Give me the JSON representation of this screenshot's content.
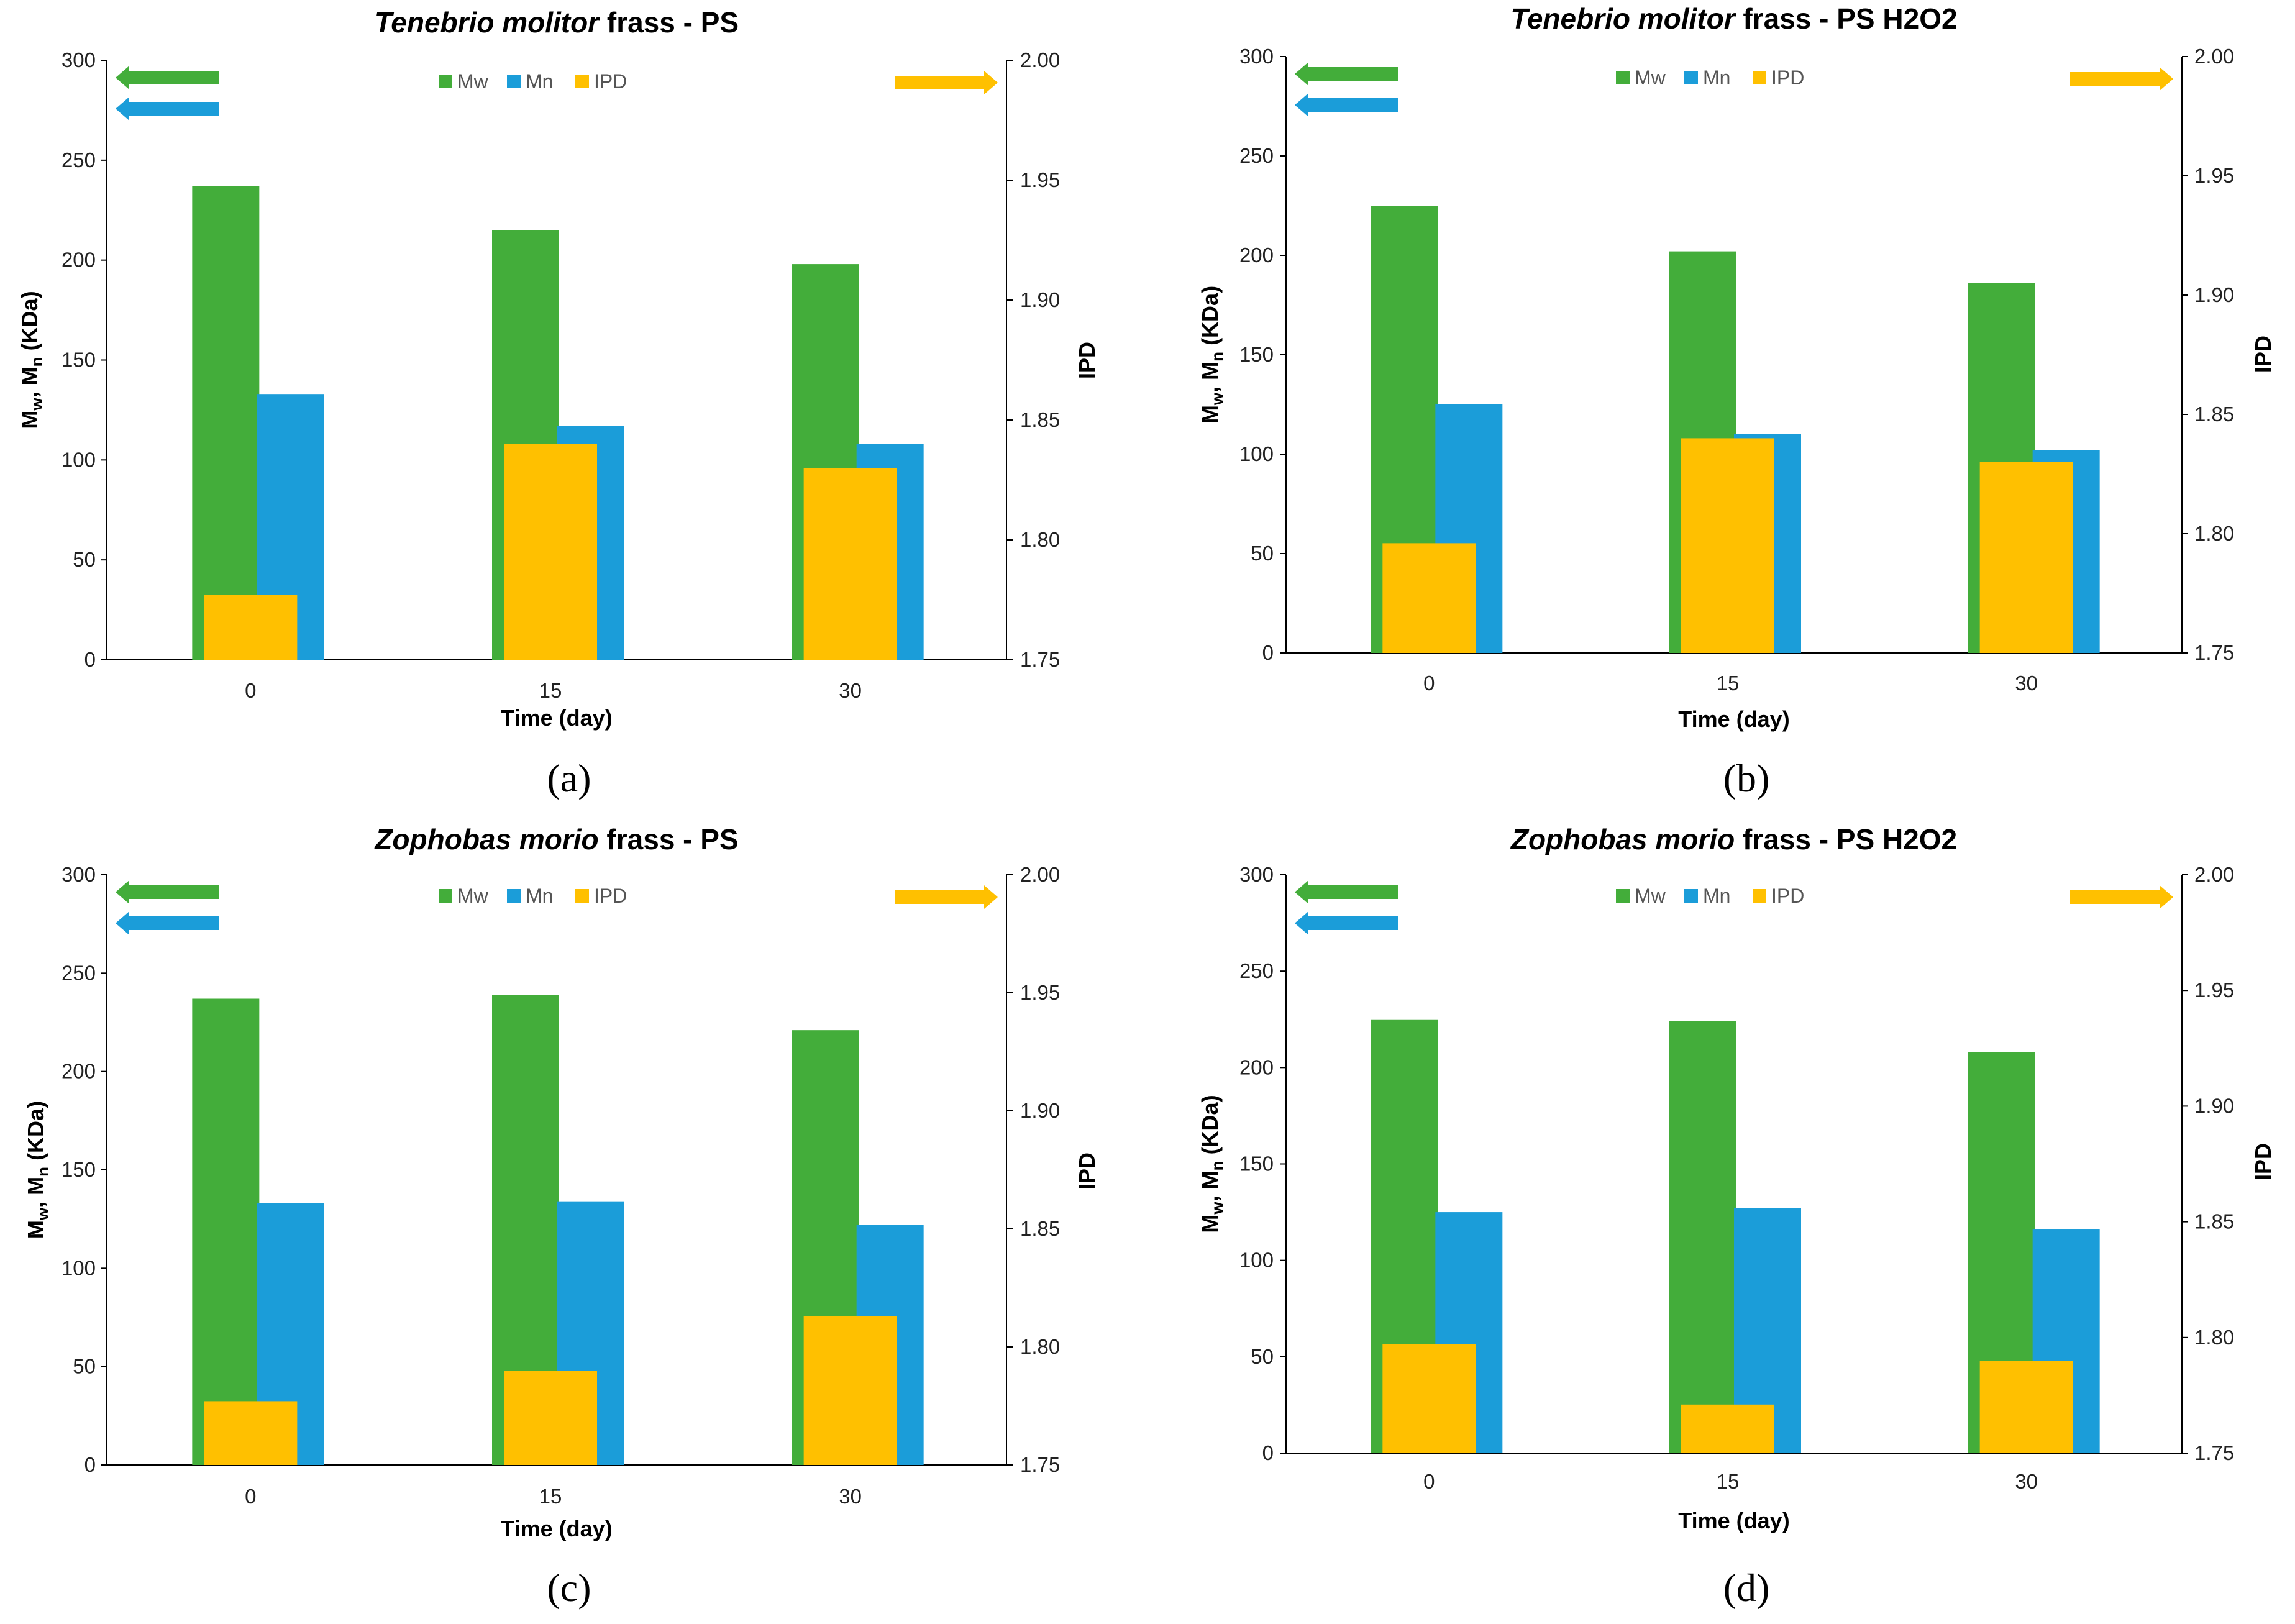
{
  "chart_data": [
    {
      "panel": "(a)",
      "type": "bar",
      "title_italic": "Tenebrio molitor",
      "title_rest": " frass - PS",
      "xlabel": "Time (day)",
      "ylabel_left": "Mw, Mn (KDa)",
      "ylabel_right": "IPD",
      "categories": [
        "0",
        "15",
        "30"
      ],
      "ylim_left": [
        0,
        300
      ],
      "yticks_left": [
        0,
        50,
        100,
        150,
        200,
        250,
        300
      ],
      "ylim_right": [
        1.75,
        2.0
      ],
      "yticks_right": [
        "1.75",
        "1.80",
        "1.85",
        "1.90",
        "1.95",
        "2.00"
      ],
      "legend": [
        "Mw",
        "Mn",
        "IPD"
      ],
      "legend_position": "top-center",
      "series": [
        {
          "name": "Mw",
          "axis": "left",
          "color": "#43ad3a",
          "values": [
            237,
            215,
            198
          ]
        },
        {
          "name": "Mn",
          "axis": "left",
          "color": "#1b9dd9",
          "values": [
            133,
            117,
            108
          ]
        },
        {
          "name": "IPD",
          "axis": "right",
          "color": "#ffc000",
          "values": [
            1.777,
            1.84,
            1.83
          ]
        }
      ]
    },
    {
      "panel": "(b)",
      "type": "bar",
      "title_italic": "Tenebrio molitor",
      "title_rest": " frass - PS H2O2",
      "xlabel": "Time (day)",
      "ylabel_left": "Mw, Mn (KDa)",
      "ylabel_right": "IPD",
      "categories": [
        "0",
        "15",
        "30"
      ],
      "ylim_left": [
        0,
        300
      ],
      "yticks_left": [
        0,
        50,
        100,
        150,
        200,
        250,
        300
      ],
      "ylim_right": [
        1.75,
        2.0
      ],
      "yticks_right": [
        "1.75",
        "1.80",
        "1.85",
        "1.90",
        "1.95",
        "2.00"
      ],
      "legend": [
        "Mw",
        "Mn",
        "IPD"
      ],
      "legend_position": "top-center",
      "series": [
        {
          "name": "Mw",
          "axis": "left",
          "color": "#43ad3a",
          "values": [
            225,
            202,
            186
          ]
        },
        {
          "name": "Mn",
          "axis": "left",
          "color": "#1b9dd9",
          "values": [
            125,
            110,
            102
          ]
        },
        {
          "name": "IPD",
          "axis": "right",
          "color": "#ffc000",
          "values": [
            1.796,
            1.84,
            1.83
          ]
        }
      ]
    },
    {
      "panel": "(c)",
      "type": "bar",
      "title_italic": "Zophobas morio",
      "title_rest": " frass - PS",
      "xlabel": "Time (day)",
      "ylabel_left": "Mw, Mn (KDa)",
      "ylabel_right": "IPD",
      "categories": [
        "0",
        "15",
        "30"
      ],
      "ylim_left": [
        0,
        300
      ],
      "yticks_left": [
        0,
        50,
        100,
        150,
        200,
        250,
        300
      ],
      "ylim_right": [
        1.75,
        2.0
      ],
      "yticks_right": [
        "1.75",
        "1.80",
        "1.85",
        "1.90",
        "1.95",
        "2.00"
      ],
      "legend": [
        "Mw",
        "Mn",
        "IPD"
      ],
      "legend_position": "top-center",
      "series": [
        {
          "name": "Mw",
          "axis": "left",
          "color": "#43ad3a",
          "values": [
            237,
            239,
            221
          ]
        },
        {
          "name": "Mn",
          "axis": "left",
          "color": "#1b9dd9",
          "values": [
            133,
            134,
            122
          ]
        },
        {
          "name": "IPD",
          "axis": "right",
          "color": "#ffc000",
          "values": [
            1.777,
            1.79,
            1.813
          ]
        }
      ]
    },
    {
      "panel": "(d)",
      "type": "bar",
      "title_italic": "Zophobas morio",
      "title_rest": " frass - PS H2O2",
      "xlabel": "Time (day)",
      "ylabel_left": "Mw, Mn (KDa)",
      "ylabel_right": "IPD",
      "categories": [
        "0",
        "15",
        "30"
      ],
      "ylim_left": [
        0,
        300
      ],
      "yticks_left": [
        0,
        50,
        100,
        150,
        200,
        250,
        300
      ],
      "ylim_right": [
        1.75,
        2.0
      ],
      "yticks_right": [
        "1.75",
        "1.80",
        "1.85",
        "1.90",
        "1.95",
        "2.00"
      ],
      "legend": [
        "Mw",
        "Mn",
        "IPD"
      ],
      "legend_position": "top-center",
      "series": [
        {
          "name": "Mw",
          "axis": "left",
          "color": "#43ad3a",
          "values": [
            225,
            224,
            208
          ]
        },
        {
          "name": "Mn",
          "axis": "left",
          "color": "#1b9dd9",
          "values": [
            125,
            127,
            116
          ]
        },
        {
          "name": "IPD",
          "axis": "right",
          "color": "#ffc000",
          "values": [
            1.797,
            1.771,
            1.79
          ]
        }
      ]
    }
  ]
}
